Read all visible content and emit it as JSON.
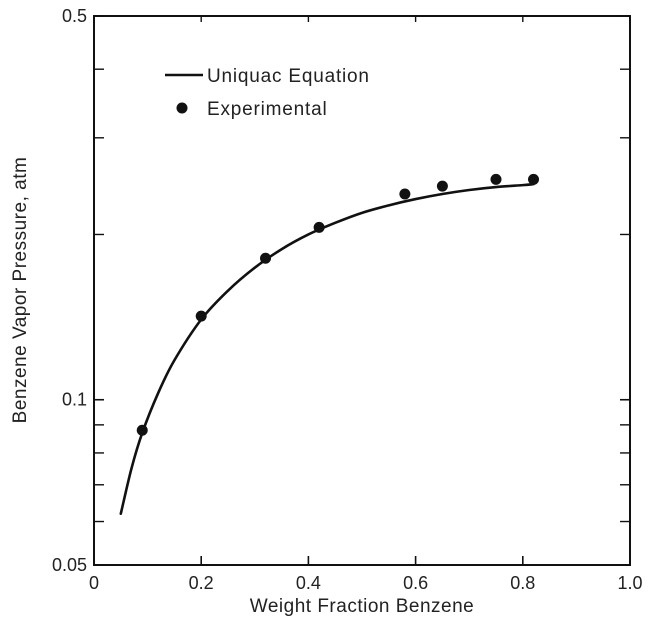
{
  "chart_data": {
    "type": "line",
    "title": "",
    "xlabel": "Weight Fraction Benzene",
    "ylabel": "Benzene Vapor Pressure, atm",
    "x_scale": "linear",
    "y_scale": "log",
    "xlim": [
      0,
      1.0
    ],
    "ylim": [
      0.05,
      0.5
    ],
    "x_ticks": [
      0,
      0.2,
      0.4,
      0.6,
      0.8,
      1.0
    ],
    "x_tick_labels": [
      "0",
      "0.2",
      "0.4",
      "0.6",
      "0.8",
      "1.0"
    ],
    "y_tick_labels": [
      {
        "value": 0.05,
        "label": "0.05"
      },
      {
        "value": 0.1,
        "label": "0.1"
      },
      {
        "value": 0.5,
        "label": "0.5"
      }
    ],
    "y_minor_ticks": [
      0.06,
      0.07,
      0.08,
      0.09,
      0.2,
      0.3,
      0.4
    ],
    "grid": false,
    "legend_position": "top-left",
    "series": [
      {
        "name": "Uniquac Equation",
        "style": "line",
        "color": "#111111",
        "x": [
          0.05,
          0.07,
          0.09,
          0.12,
          0.15,
          0.2,
          0.25,
          0.3,
          0.35,
          0.4,
          0.45,
          0.5,
          0.55,
          0.6,
          0.65,
          0.7,
          0.75,
          0.8,
          0.82
        ],
        "y": [
          0.062,
          0.075,
          0.087,
          0.103,
          0.118,
          0.14,
          0.158,
          0.174,
          0.188,
          0.2,
          0.21,
          0.219,
          0.226,
          0.232,
          0.237,
          0.241,
          0.244,
          0.246,
          0.247
        ]
      },
      {
        "name": "Experimental",
        "style": "marker",
        "color": "#111111",
        "x": [
          0.09,
          0.2,
          0.32,
          0.42,
          0.58,
          0.65,
          0.75,
          0.82
        ],
        "y": [
          0.088,
          0.142,
          0.181,
          0.206,
          0.237,
          0.245,
          0.252,
          0.252
        ]
      }
    ]
  }
}
